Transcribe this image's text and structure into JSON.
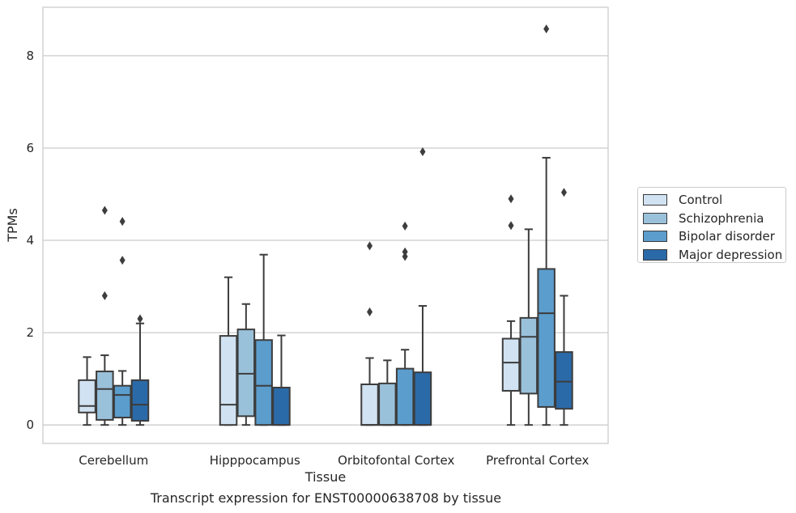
{
  "chart_data": {
    "type": "box",
    "title": "Transcript expression for ENST00000638708 by tissue",
    "xlabel": "Tissue",
    "ylabel": "TPMs",
    "ylim": [
      -0.4,
      9.05
    ],
    "yticks": [
      0,
      2,
      4,
      6,
      8
    ],
    "grid": "horizontal",
    "legend_position": "right",
    "categories": [
      "Cerebellum",
      "Hipppocampus",
      "Orbitofontal Cortex",
      "Prefrontal Cortex"
    ],
    "series": [
      {
        "name": "Control",
        "color": "#d1e2f2",
        "boxes": [
          {
            "whislo": 0.0,
            "q1": 0.27,
            "med": 0.41,
            "q3": 0.97,
            "whishi": 1.47,
            "fliers": []
          },
          {
            "whislo": 0.0,
            "q1": 0.0,
            "med": 0.44,
            "q3": 1.93,
            "whishi": 3.2,
            "fliers": []
          },
          {
            "whislo": 0.0,
            "q1": 0.0,
            "med": 0.0,
            "q3": 0.88,
            "whishi": 1.45,
            "fliers": [
              2.45,
              3.88
            ]
          },
          {
            "whislo": 0.0,
            "q1": 0.74,
            "med": 1.35,
            "q3": 1.87,
            "whishi": 2.25,
            "fliers": [
              4.32,
              4.9
            ]
          }
        ]
      },
      {
        "name": "Schizophrenia",
        "color": "#9ac1da",
        "boxes": [
          {
            "whislo": 0.0,
            "q1": 0.11,
            "med": 0.78,
            "q3": 1.16,
            "whishi": 1.51,
            "fliers": [
              2.8,
              4.65
            ]
          },
          {
            "whislo": 0.0,
            "q1": 0.19,
            "med": 1.11,
            "q3": 2.07,
            "whishi": 2.62,
            "fliers": []
          },
          {
            "whislo": 0.0,
            "q1": 0.0,
            "med": 0.0,
            "q3": 0.9,
            "whishi": 1.4,
            "fliers": []
          },
          {
            "whislo": 0.0,
            "q1": 0.68,
            "med": 1.91,
            "q3": 2.32,
            "whishi": 4.24,
            "fliers": []
          }
        ]
      },
      {
        "name": "Bipolar disorder",
        "color": "#5b9dcd",
        "boxes": [
          {
            "whislo": 0.0,
            "q1": 0.16,
            "med": 0.65,
            "q3": 0.85,
            "whishi": 1.17,
            "fliers": [
              3.57,
              4.41
            ]
          },
          {
            "whislo": 0.0,
            "q1": 0.0,
            "med": 0.85,
            "q3": 1.84,
            "whishi": 3.69,
            "fliers": []
          },
          {
            "whislo": 0.0,
            "q1": 0.0,
            "med": 0.0,
            "q3": 1.22,
            "whishi": 1.63,
            "fliers": [
              3.65,
              3.75,
              4.31
            ]
          },
          {
            "whislo": 0.0,
            "q1": 0.39,
            "med": 2.42,
            "q3": 3.38,
            "whishi": 5.79,
            "fliers": [
              8.58
            ]
          }
        ]
      },
      {
        "name": "Major depression",
        "color": "#2b6aa8",
        "boxes": [
          {
            "whislo": 0.0,
            "q1": 0.09,
            "med": 0.44,
            "q3": 0.97,
            "whishi": 2.2,
            "fliers": [
              2.3
            ]
          },
          {
            "whislo": 0.0,
            "q1": 0.0,
            "med": 0.0,
            "q3": 0.81,
            "whishi": 1.94,
            "fliers": []
          },
          {
            "whislo": 0.0,
            "q1": 0.0,
            "med": 0.0,
            "q3": 1.14,
            "whishi": 2.58,
            "fliers": [
              5.92
            ]
          },
          {
            "whislo": 0.0,
            "q1": 0.35,
            "med": 0.94,
            "q3": 1.58,
            "whishi": 2.8,
            "fliers": [
              5.04
            ]
          }
        ]
      }
    ]
  }
}
